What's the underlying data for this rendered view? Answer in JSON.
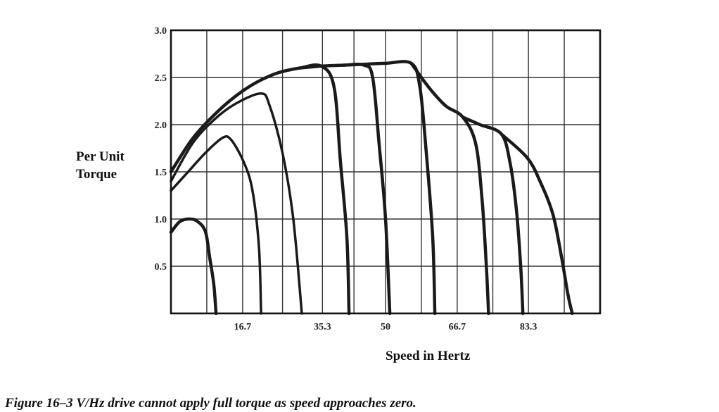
{
  "chart_data": {
    "type": "line",
    "title": "",
    "xlabel": "Speed in Hertz",
    "ylabel": [
      "Per Unit",
      "Torque"
    ],
    "x_ticks": [
      "16.7",
      "35.3",
      "50",
      "66.7",
      "83.3"
    ],
    "y_ticks": [
      "0.5",
      "1.0",
      "1.5",
      "2.0",
      "2.5",
      "3.0"
    ],
    "x_tick_values": [
      16.7,
      35.3,
      50,
      66.7,
      83.3
    ],
    "y_tick_values": [
      0.5,
      1.0,
      1.5,
      2.0,
      2.5,
      3.0
    ],
    "xlim": [
      0,
      100
    ],
    "ylim": [
      0,
      3.0
    ],
    "grid": true,
    "legend": "none",
    "series": [
      {
        "values": [
          [
            0,
            0.86
          ],
          [
            2,
            0.97
          ],
          [
            4,
            1.0
          ],
          [
            6,
            0.98
          ],
          [
            8,
            0.87
          ],
          [
            9,
            0.6
          ],
          [
            10,
            0.3
          ],
          [
            10.5,
            0
          ]
        ]
      },
      {
        "values": [
          [
            0,
            1.3
          ],
          [
            4,
            1.5
          ],
          [
            8,
            1.7
          ],
          [
            12,
            1.86
          ],
          [
            14,
            1.84
          ],
          [
            17,
            1.6
          ],
          [
            19,
            1.3
          ],
          [
            20.5,
            0.7
          ],
          [
            21,
            0
          ]
        ]
      },
      {
        "values": [
          [
            0,
            1.4
          ],
          [
            5,
            1.8
          ],
          [
            10,
            2.05
          ],
          [
            15,
            2.22
          ],
          [
            21,
            2.33
          ],
          [
            23,
            2.2
          ],
          [
            26,
            1.7
          ],
          [
            28.5,
            1.0
          ],
          [
            30.5,
            0
          ]
        ]
      },
      {
        "values": [
          [
            0,
            1.5
          ],
          [
            5,
            1.85
          ],
          [
            10,
            2.1
          ],
          [
            15,
            2.3
          ],
          [
            20,
            2.45
          ],
          [
            25,
            2.55
          ],
          [
            30,
            2.6
          ],
          [
            35,
            2.62
          ],
          [
            38,
            2.4
          ],
          [
            39.5,
            1.6
          ],
          [
            41,
            0.8
          ],
          [
            41.5,
            0
          ]
        ]
      },
      {
        "values": [
          [
            30,
            2.6
          ],
          [
            35,
            2.62
          ],
          [
            40,
            2.63
          ],
          [
            45,
            2.63
          ],
          [
            47,
            2.5
          ],
          [
            48.5,
            1.8
          ],
          [
            50,
            1.0
          ],
          [
            51,
            0
          ]
        ]
      },
      {
        "values": [
          [
            40,
            2.63
          ],
          [
            45,
            2.64
          ],
          [
            50,
            2.65
          ],
          [
            56,
            2.65
          ],
          [
            58,
            2.4
          ],
          [
            59.5,
            1.7
          ],
          [
            61,
            0.8
          ],
          [
            61.5,
            0
          ]
        ]
      },
      {
        "values": [
          [
            56,
            2.65
          ],
          [
            60,
            2.4
          ],
          [
            64,
            2.2
          ],
          [
            68,
            2.08
          ],
          [
            71,
            1.8
          ],
          [
            72.5,
            1.2
          ],
          [
            73.5,
            0.5
          ],
          [
            74,
            0
          ]
        ]
      },
      {
        "values": [
          [
            68,
            2.08
          ],
          [
            72,
            2.0
          ],
          [
            77,
            1.9
          ],
          [
            79,
            1.6
          ],
          [
            80.5,
            1.1
          ],
          [
            81.5,
            0.5
          ],
          [
            82,
            0
          ]
        ]
      },
      {
        "values": [
          [
            77,
            1.9
          ],
          [
            83,
            1.65
          ],
          [
            86,
            1.4
          ],
          [
            89,
            1.05
          ],
          [
            91,
            0.6
          ],
          [
            92.5,
            0.2
          ],
          [
            93.5,
            0
          ]
        ]
      }
    ]
  },
  "caption": "Figure 16–3  V/Hz drive cannot apply full torque as speed approaches zero."
}
